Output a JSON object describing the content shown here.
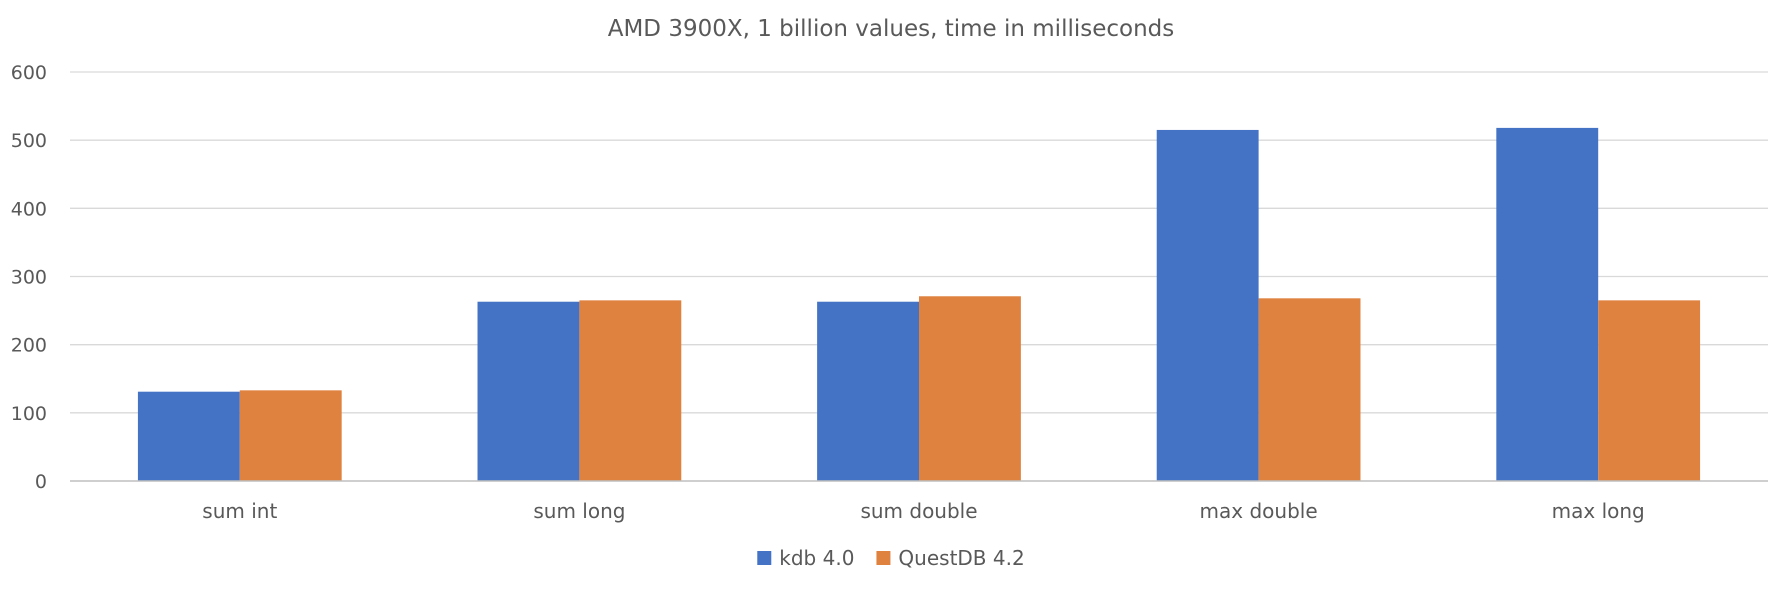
{
  "chart_data": {
    "type": "bar",
    "title": "AMD 3900X, 1 billion values, time in milliseconds",
    "xlabel": "",
    "ylabel": "",
    "categories": [
      "sum int",
      "sum long",
      "sum double",
      "max double",
      "max long"
    ],
    "series": [
      {
        "name": "kdb 4.0",
        "color": "#4472C4",
        "values": [
          131,
          263,
          263,
          515,
          518
        ]
      },
      {
        "name": "QuestDB 4.2",
        "color": "#E0823F",
        "values": [
          133,
          265,
          271,
          268,
          265
        ]
      }
    ],
    "ylim": [
      0,
      600
    ],
    "yticks": [
      "0",
      "100",
      "200",
      "300",
      "400",
      "500",
      "600"
    ],
    "grid": true,
    "legend": "bottom"
  }
}
